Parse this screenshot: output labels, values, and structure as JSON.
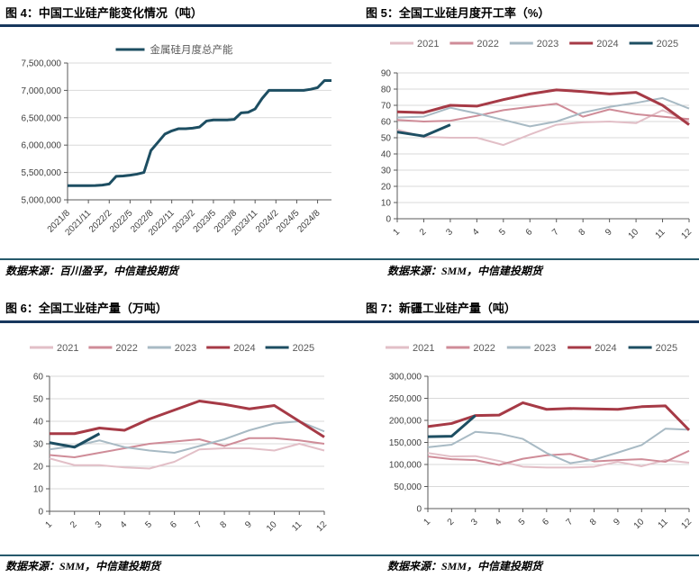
{
  "style": {
    "header_rule_color": "#17375d",
    "divider_rule_color": "#26596b",
    "grid_color": "#d9d9d9",
    "axis_color": "#595959",
    "tick_label_color": "#404040"
  },
  "chart_data": [
    {
      "id": "fig4",
      "type": "line",
      "title": "图 4：中国工业硅产能变化情况（吨）",
      "source": "数据来源：百川盈孚，中信建投期货",
      "ylim": [
        5000000,
        7500000
      ],
      "ytick_labels": [
        "5,000,000",
        "5,500,000",
        "6,000,000",
        "6,500,000",
        "7,000,000",
        "7,500,000"
      ],
      "x_tick_every": 3,
      "x_tick_labels": [
        "2021/8",
        "2021/11",
        "2022/2",
        "2022/5",
        "2022/8",
        "2022/11",
        "2023/2",
        "2023/5",
        "2023/8",
        "2023/11",
        "2024/2",
        "2024/5",
        "2024/8"
      ],
      "grid": true,
      "legend_position": "top-center",
      "series": [
        {
          "name": "金属硅月度总产能",
          "color": "#1d4e62",
          "width": 3,
          "values": [
            5260000,
            5260000,
            5260000,
            5260000,
            5262000,
            5270000,
            5290000,
            5430000,
            5435000,
            5450000,
            5470000,
            5500000,
            5900000,
            6050000,
            6200000,
            6260000,
            6300000,
            6300000,
            6310000,
            6330000,
            6440000,
            6460000,
            6460000,
            6460000,
            6470000,
            6590000,
            6600000,
            6660000,
            6850000,
            7000000,
            7000000,
            7000000,
            7000000,
            7000000,
            7000000,
            7020000,
            7050000,
            7180000,
            7180000
          ]
        }
      ]
    },
    {
      "id": "fig5",
      "type": "line",
      "title": "图 5：全国工业硅月度开工率（%）",
      "source": "数据来源：SMM，中信建投期货",
      "ylim": [
        0,
        90
      ],
      "ytick_labels": [
        "0",
        "10",
        "20",
        "30",
        "40",
        "50",
        "60",
        "70",
        "80",
        "90"
      ],
      "x_tick_every": 1,
      "x_tick_labels": [
        "1",
        "2",
        "3",
        "4",
        "5",
        "6",
        "7",
        "8",
        "9",
        "10",
        "11",
        "12"
      ],
      "grid": true,
      "legend_position": "top-row",
      "series": [
        {
          "name": "2021",
          "color": "#e2bfc7",
          "width": 2,
          "values": [
            55,
            50.5,
            50,
            50,
            45.5,
            52,
            58,
            59.5,
            60,
            59,
            67,
            60
          ]
        },
        {
          "name": "2022",
          "color": "#cf8c98",
          "width": 2,
          "values": [
            61,
            60,
            60.5,
            63.5,
            67,
            69,
            71,
            63,
            67.5,
            64.5,
            63,
            61.5
          ]
        },
        {
          "name": "2023",
          "color": "#a8bac4",
          "width": 2,
          "values": [
            62.5,
            63,
            68.5,
            65,
            61,
            57,
            60,
            65.5,
            69,
            71.5,
            74.5,
            68
          ]
        },
        {
          "name": "2024",
          "color": "#a63a46",
          "width": 3,
          "values": [
            66,
            65.5,
            70,
            69.5,
            73.5,
            77,
            79.5,
            78.5,
            77,
            78,
            70,
            58
          ]
        },
        {
          "name": "2025",
          "color": "#1d4e62",
          "width": 3,
          "values": [
            53.5,
            51,
            58
          ]
        }
      ]
    },
    {
      "id": "fig6",
      "type": "line",
      "title": "图 6：全国工业硅产量（万吨）",
      "source": "数据来源：SMM，中信建投期货",
      "ylim": [
        0,
        60
      ],
      "ytick_labels": [
        "0",
        "10",
        "20",
        "30",
        "40",
        "50",
        "60"
      ],
      "x_tick_every": 1,
      "x_tick_labels": [
        "1",
        "2",
        "3",
        "4",
        "5",
        "6",
        "7",
        "8",
        "9",
        "10",
        "11",
        "12"
      ],
      "grid": true,
      "legend_position": "top-row",
      "series": [
        {
          "name": "2021",
          "color": "#e2bfc7",
          "width": 2,
          "values": [
            23.5,
            20.5,
            20.5,
            19.5,
            19,
            22,
            27.5,
            28,
            28,
            27,
            30,
            27
          ]
        },
        {
          "name": "2022",
          "color": "#cf8c98",
          "width": 2,
          "values": [
            25,
            24,
            26,
            28,
            30,
            31,
            32,
            29,
            32.5,
            32.5,
            31.5,
            30
          ]
        },
        {
          "name": "2023",
          "color": "#a8bac4",
          "width": 2,
          "values": [
            27.5,
            29,
            31.5,
            28.5,
            27,
            26,
            29,
            32,
            36,
            39,
            40,
            35.5
          ]
        },
        {
          "name": "2024",
          "color": "#a63a46",
          "width": 3,
          "values": [
            34.5,
            34.5,
            37,
            36,
            41,
            45,
            49,
            47.5,
            45.5,
            47,
            40,
            33
          ]
        },
        {
          "name": "2025",
          "color": "#1d4e62",
          "width": 3,
          "values": [
            30.5,
            28.5,
            34.5
          ]
        }
      ]
    },
    {
      "id": "fig7",
      "type": "line",
      "title": "图 7：新疆工业硅产量（吨）",
      "source": "数据来源：SMM，中信建投期货",
      "ylim": [
        0,
        300000
      ],
      "ytick_labels": [
        "0",
        "50,000",
        "100,000",
        "150,000",
        "200,000",
        "250,000",
        "300,000"
      ],
      "x_tick_every": 1,
      "x_tick_labels": [
        "1",
        "2",
        "3",
        "4",
        "5",
        "6",
        "7",
        "8",
        "9",
        "10",
        "11",
        "12"
      ],
      "grid": true,
      "legend_position": "top-row",
      "series": [
        {
          "name": "2021",
          "color": "#e2bfc7",
          "width": 2,
          "values": [
            126000,
            118000,
            119000,
            108000,
            95000,
            93000,
            93000,
            95000,
            106000,
            96000,
            110000,
            104000
          ]
        },
        {
          "name": "2022",
          "color": "#cf8c98",
          "width": 2,
          "values": [
            118000,
            112000,
            110000,
            99000,
            113000,
            121000,
            124000,
            107000,
            110000,
            112000,
            106000,
            131000
          ]
        },
        {
          "name": "2023",
          "color": "#a8bac4",
          "width": 2,
          "values": [
            139000,
            145000,
            174000,
            170000,
            158000,
            126000,
            103000,
            111000,
            127000,
            144000,
            181000,
            179000
          ]
        },
        {
          "name": "2024",
          "color": "#a63a46",
          "width": 3,
          "values": [
            186000,
            193000,
            211000,
            212000,
            240000,
            225000,
            227000,
            226000,
            225000,
            231000,
            233000,
            178000
          ]
        },
        {
          "name": "2025",
          "color": "#1d4e62",
          "width": 3,
          "values": [
            163000,
            164000,
            211000
          ]
        }
      ]
    }
  ]
}
